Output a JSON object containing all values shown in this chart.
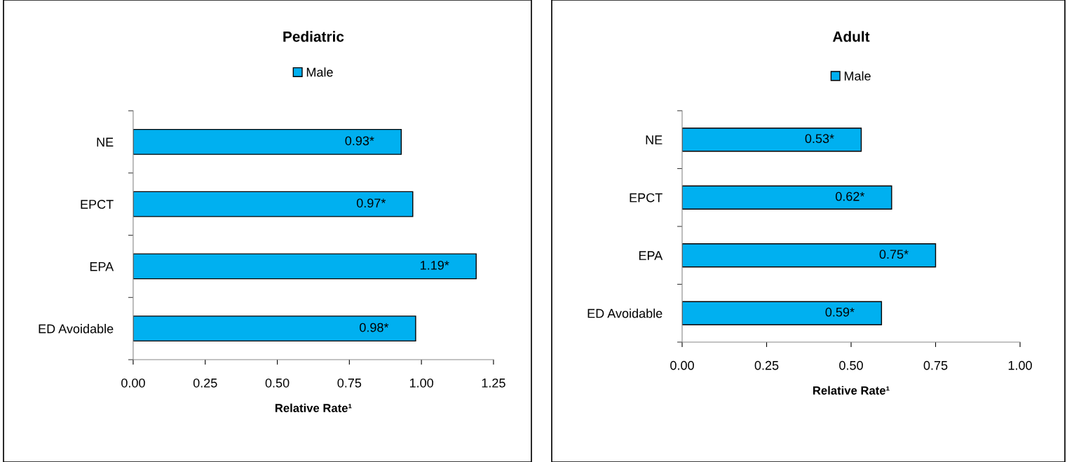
{
  "chart_data": [
    {
      "type": "bar",
      "orientation": "horizontal",
      "title": "Pediatric",
      "xlabel": "Relative Rate¹",
      "categories": [
        "NE",
        "EPCT",
        "EPA",
        "ED Avoidable"
      ],
      "series": [
        {
          "name": "Male",
          "color": "#00b0f0",
          "values": [
            0.93,
            0.97,
            1.19,
            0.98
          ],
          "value_labels": [
            "0.93*",
            "0.97*",
            "1.19*",
            "0.98*"
          ]
        }
      ],
      "xlim": [
        0,
        1.25
      ],
      "xticks": [
        {
          "value": 0,
          "label": "0.00"
        },
        {
          "value": 0.25,
          "label": "0.25"
        },
        {
          "value": 0.5,
          "label": "0.50"
        },
        {
          "value": 0.75,
          "label": "0.75"
        },
        {
          "value": 1,
          "label": "1.00"
        },
        {
          "value": 1.25,
          "label": "1.25"
        }
      ],
      "grid": false,
      "legend": "top"
    },
    {
      "type": "bar",
      "orientation": "horizontal",
      "title": "Adult",
      "xlabel": "Relative Rate¹",
      "categories": [
        "NE",
        "EPCT",
        "EPA",
        "ED Avoidable"
      ],
      "series": [
        {
          "name": "Male",
          "color": "#00b0f0",
          "values": [
            0.53,
            0.62,
            0.75,
            0.59
          ],
          "value_labels": [
            "0.53*",
            "0.62*",
            "0.75*",
            "0.59*"
          ]
        }
      ],
      "xlim": [
        0,
        1
      ],
      "xticks": [
        {
          "value": 0,
          "label": "0.00"
        },
        {
          "value": 0.25,
          "label": "0.25"
        },
        {
          "value": 0.5,
          "label": "0.50"
        },
        {
          "value": 0.75,
          "label": "0.75"
        },
        {
          "value": 1,
          "label": "1.00"
        }
      ],
      "grid": false,
      "legend": "top"
    }
  ]
}
